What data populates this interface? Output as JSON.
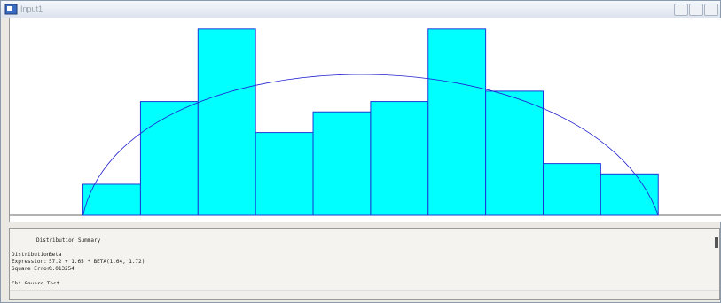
{
  "window": {
    "title": "Input1"
  },
  "chart_data": {
    "type": "histogram",
    "bins": [
      57.2,
      57.365,
      57.53,
      57.695,
      57.86,
      58.025,
      58.19,
      58.355,
      58.52,
      58.685,
      58.85
    ],
    "values": [
      3,
      11,
      18,
      8,
      10,
      11,
      18,
      12,
      5,
      4
    ],
    "color": "#00ffff",
    "edge_color": "#1a3ad6",
    "xlim": [
      56.99,
      59.03
    ],
    "ylim": [
      0,
      19.1
    ]
  },
  "summary": {
    "heading": "Distribution Summary",
    "rows": [
      [
        "Distribution:",
        "Beta"
      ],
      [
        "Expression:",
        "57.2 + 1.65 * BETA(1.64, 1.72)"
      ],
      [
        "Square Error:",
        "0.013254"
      ]
    ],
    "next": "Chi Square Test"
  }
}
